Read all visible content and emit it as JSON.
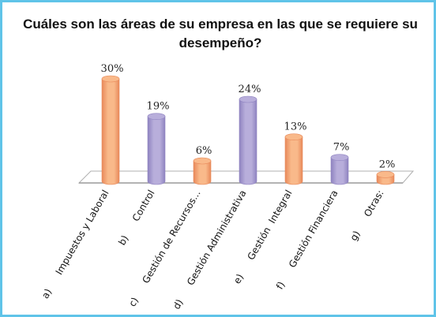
{
  "chart_data": {
    "type": "bar",
    "title": "Cuáles son las áreas de su empresa en las que se requiere su desempeño?",
    "categories": [
      "a)      Impuestos y Laboral",
      "b)      Control",
      "c)      Gestión de Recursos...",
      "d)      Gestión Administrativa",
      "e)      Gestión  Integral",
      "f)      Gestión Financiera",
      "g)      Otras:"
    ],
    "values": [
      30,
      19,
      6,
      24,
      13,
      7,
      2
    ],
    "value_labels": [
      "30%",
      "19%",
      "6%",
      "24%",
      "13%",
      "7%",
      "2%"
    ],
    "unit": "%",
    "ylim": [
      0,
      30
    ],
    "grid": false,
    "legend": "none",
    "bar_style": "3d-cylinder",
    "colors": [
      "#f9b98a",
      "#b8aedb",
      "#f9b98a",
      "#b8aedb",
      "#f9b98a",
      "#b8aedb",
      "#f9b98a"
    ],
    "color_dark": [
      "#e8895a",
      "#8f83c0",
      "#e8895a",
      "#8f83c0",
      "#e8895a",
      "#8f83c0",
      "#e8895a"
    ]
  }
}
